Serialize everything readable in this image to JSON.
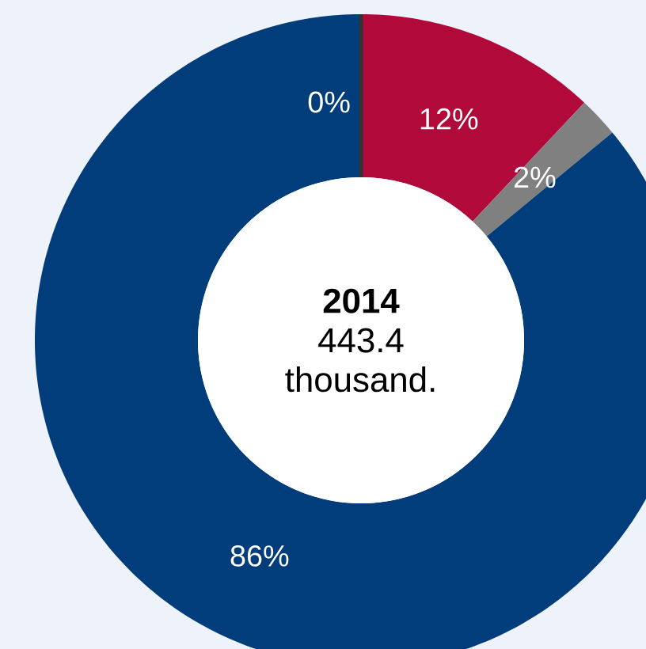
{
  "chart_data": {
    "type": "donut",
    "title": "2014",
    "subtitle": "443.4 thousand.",
    "categories": [
      null,
      null,
      null,
      null
    ],
    "values": [
      0,
      12,
      2,
      86
    ],
    "colors": [
      "#333333",
      "#b0093a",
      "#808080",
      "#003d7a"
    ],
    "value_labels": [
      "0%",
      "12%",
      "2%",
      "86%"
    ]
  }
}
